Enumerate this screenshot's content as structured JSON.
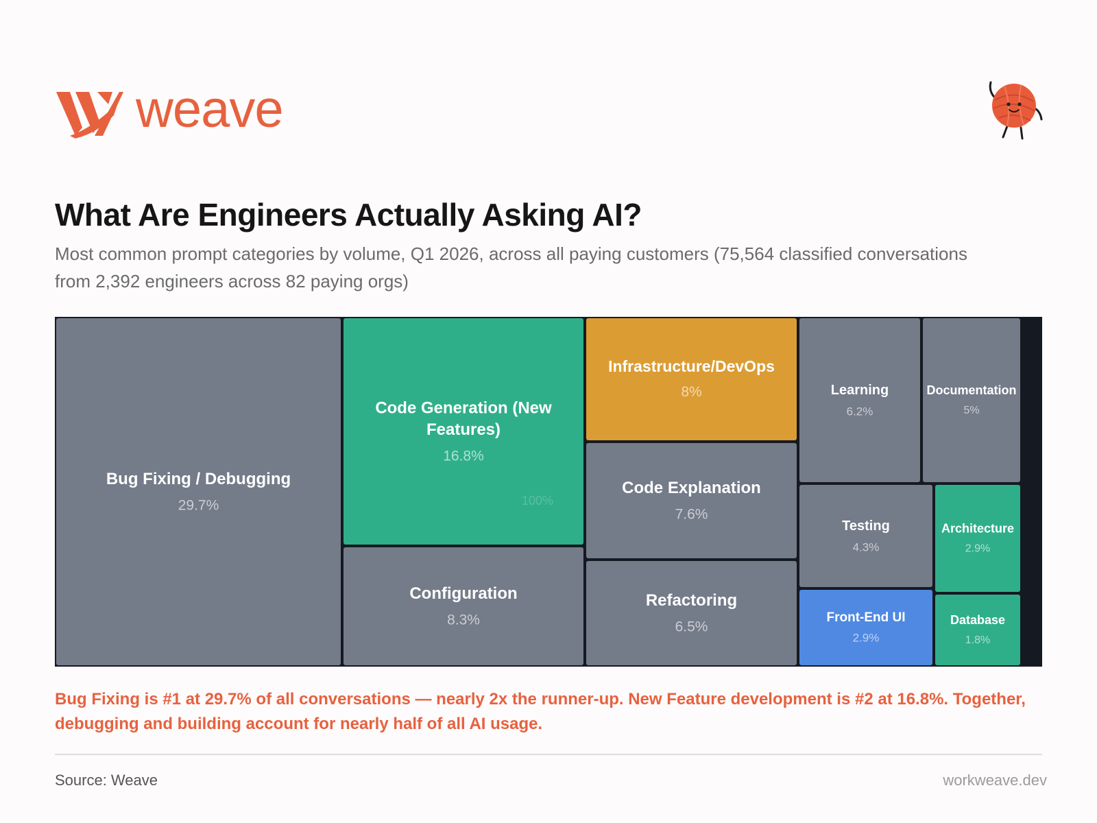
{
  "brand": {
    "name": "weave",
    "logo_icon": "weave-logo-mark-icon",
    "mascot_icon": "yarn-ball-mascot-icon",
    "color": "#e7613f"
  },
  "title": "What Are Engineers Actually Asking AI?",
  "subtitle": "Most common prompt categories by volume, Q1 2026, across all paying customers (75,564 classified conversations from 2,392 engineers across 82 paying orgs)",
  "insight": "Bug Fixing is #1 at 29.7% of all conversations — nearly 2x the runner-up. New Feature development is #2 at 16.8%. Together, debugging and building account for nearly half of all AI usage.",
  "footer": {
    "source": "Source: Weave",
    "site": "workweave.dev"
  },
  "colors": {
    "gray": "#747b89",
    "green": "#2faf89",
    "orange": "#db9c33",
    "blue": "#4f89e2",
    "border": "#151a22",
    "insight": "#e7613f"
  },
  "chart_data": {
    "type": "treemap",
    "root_label": "100%",
    "values_unit": "%",
    "items": [
      {
        "label": "Bug Fixing / Debugging",
        "value": 29.7,
        "value_label": "29.7%",
        "color": "#747b89"
      },
      {
        "label": "Code Generation (New Features)",
        "value": 16.8,
        "value_label": "16.8%",
        "color": "#2faf89"
      },
      {
        "label": "Configuration",
        "value": 8.3,
        "value_label": "8.3%",
        "color": "#747b89"
      },
      {
        "label": "Infrastructure/DevOps",
        "value": 8,
        "value_label": "8%",
        "color": "#db9c33"
      },
      {
        "label": "Code Explanation",
        "value": 7.6,
        "value_label": "7.6%",
        "color": "#747b89"
      },
      {
        "label": "Refactoring",
        "value": 6.5,
        "value_label": "6.5%",
        "color": "#747b89"
      },
      {
        "label": "Learning",
        "value": 6.2,
        "value_label": "6.2%",
        "color": "#747b89"
      },
      {
        "label": "Documentation",
        "value": 5,
        "value_label": "5%",
        "color": "#747b89"
      },
      {
        "label": "Testing",
        "value": 4.3,
        "value_label": "4.3%",
        "color": "#747b89"
      },
      {
        "label": "Architecture",
        "value": 2.9,
        "value_label": "2.9%",
        "color": "#2faf89"
      },
      {
        "label": "Front-End UI",
        "value": 2.9,
        "value_label": "2.9%",
        "color": "#4f89e2"
      },
      {
        "label": "Database",
        "value": 1.8,
        "value_label": "1.8%",
        "color": "#2faf89"
      }
    ]
  }
}
